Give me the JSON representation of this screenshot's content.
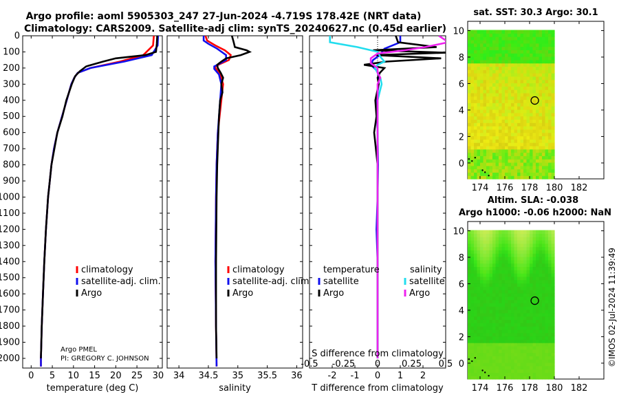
{
  "title": {
    "line1": "Argo profile: aoml 5905303_247 27-Jun-2024 -4.719S 178.42E (NRT data)",
    "line2": "Climatology: CARS2009. Satellite-adj clim: synTS_20240627.nc (0.45d earlier)"
  },
  "side_label": "©IMOS 02-Jul-2024 11:39:49",
  "colors": {
    "climatology": "#ff0000",
    "satellite": "#1010ee",
    "argo": "#000000",
    "sat_salinity": "#22ddee",
    "argo_salinity": "#ee22ee"
  },
  "credit": {
    "line1": "Argo PMEL",
    "line2": "PI: GREGORY C. JOHNSON"
  },
  "chart_data": [
    {
      "id": "temperature",
      "type": "line",
      "xlabel": "temperature (deg C)",
      "xlim": [
        -2,
        31
      ],
      "ylim": [
        2060,
        0
      ],
      "xticks": [
        "0",
        "5",
        "10",
        "15",
        "20",
        "25",
        "30"
      ],
      "xtick_values": [
        0,
        5,
        10,
        15,
        20,
        25,
        30
      ],
      "yticks": [
        "0",
        "100",
        "200",
        "300",
        "400",
        "500",
        "600",
        "700",
        "800",
        "900",
        "1000",
        "1100",
        "1200",
        "1300",
        "1400",
        "1500",
        "1600",
        "1700",
        "1800",
        "1900",
        "2000"
      ],
      "ytick_values": [
        0,
        100,
        200,
        300,
        400,
        500,
        600,
        700,
        800,
        900,
        1000,
        1100,
        1200,
        1300,
        1400,
        1500,
        1600,
        1700,
        1800,
        1900,
        2000
      ],
      "legend": [
        "climatology",
        "satellite-adj. clim.",
        "Argo"
      ],
      "series": [
        {
          "name": "climatology",
          "color": "#ff0000",
          "depth": [
            0,
            60,
            120,
            160,
            200,
            230,
            260,
            300,
            400,
            500,
            600,
            700,
            800,
            900,
            1000,
            1200,
            1400,
            1600,
            1800,
            2000,
            2050
          ],
          "values": [
            29.0,
            28.8,
            26.5,
            21,
            14,
            11,
            10.2,
            9.5,
            8.4,
            7.3,
            6.2,
            5.4,
            4.8,
            4.4,
            4.0,
            3.5,
            3.1,
            2.8,
            2.5,
            2.3,
            2.3
          ]
        },
        {
          "name": "satellite-adj. clim.",
          "color": "#1010ee",
          "depth": [
            0,
            60,
            120,
            160,
            200,
            230,
            260,
            300,
            400,
            500,
            600,
            700,
            800,
            900,
            1000,
            1200,
            1400,
            1600,
            1800,
            2000,
            2050
          ],
          "values": [
            30.0,
            29.9,
            28.5,
            22,
            14,
            11,
            10.2,
            9.5,
            8.4,
            7.3,
            6.2,
            5.4,
            4.8,
            4.4,
            4.0,
            3.5,
            3.1,
            2.8,
            2.5,
            2.3,
            2.3
          ]
        },
        {
          "name": "Argo",
          "color": "#000000",
          "depth": [
            0,
            50,
            100,
            120,
            140,
            160,
            190,
            220,
            250,
            300,
            400,
            500,
            600,
            700,
            800,
            900,
            1000,
            1200,
            1400,
            1600,
            1800,
            2000
          ],
          "values": [
            29.8,
            29.7,
            29.5,
            27,
            20,
            17,
            13,
            11.5,
            10.4,
            9.6,
            8.3,
            7.4,
            6.2,
            5.5,
            4.8,
            4.4,
            4.0,
            3.5,
            3.1,
            2.8,
            2.5,
            2.3
          ]
        }
      ]
    },
    {
      "id": "salinity",
      "type": "line",
      "xlabel": "salinity",
      "xlim": [
        33.8,
        36.1
      ],
      "ylim": [
        2060,
        0
      ],
      "xticks": [
        "34",
        "34.5",
        "35",
        "35.5",
        "36"
      ],
      "xtick_values": [
        34,
        34.5,
        35,
        35.5,
        36
      ],
      "legend": [
        "climatology",
        "satellite-adj. clim.",
        "Argo"
      ],
      "series": [
        {
          "name": "climatology",
          "color": "#ff0000",
          "depth": [
            0,
            30,
            60,
            90,
            120,
            150,
            175,
            190,
            200,
            240,
            300,
            400,
            600,
            800,
            1000,
            1400,
            1800,
            2050
          ],
          "values": [
            34.45,
            34.48,
            34.62,
            34.78,
            34.88,
            34.85,
            34.7,
            34.62,
            34.62,
            34.7,
            34.75,
            34.72,
            34.66,
            34.64,
            34.63,
            34.62,
            34.63,
            34.64
          ]
        },
        {
          "name": "satellite-adj. clim.",
          "color": "#1010ee",
          "depth": [
            0,
            30,
            50,
            80,
            120,
            150,
            175,
            190,
            205,
            240,
            300,
            400,
            600,
            800,
            1000,
            1400,
            1800,
            2050
          ],
          "values": [
            34.42,
            34.42,
            34.5,
            34.65,
            34.8,
            34.8,
            34.68,
            34.6,
            34.6,
            34.68,
            34.72,
            34.7,
            34.66,
            34.64,
            34.63,
            34.62,
            34.63,
            34.64
          ]
        },
        {
          "name": "Argo",
          "color": "#000000",
          "depth": [
            0,
            40,
            70,
            90,
            100,
            120,
            140,
            160,
            180,
            200,
            230,
            260,
            300,
            350,
            400,
            500,
            600,
            800,
            1000,
            1400,
            1800,
            2000
          ],
          "values": [
            34.9,
            34.93,
            34.95,
            35.15,
            35.2,
            35.05,
            34.8,
            34.72,
            34.65,
            34.66,
            34.71,
            34.75,
            34.72,
            34.74,
            34.7,
            34.68,
            34.67,
            34.65,
            34.64,
            34.63,
            34.63,
            34.64
          ]
        }
      ]
    },
    {
      "id": "difference",
      "type": "line",
      "xlabel": "T difference from climatology",
      "xlabel2": "S difference from climatology",
      "xlim": [
        -3,
        3
      ],
      "ylim": [
        2060,
        0
      ],
      "xticks": [
        "-2",
        "-1",
        "0",
        "1",
        "2"
      ],
      "xtick_values": [
        -2,
        -1,
        0,
        1,
        2
      ],
      "xticks2": [
        "-0.5",
        "-0.25",
        "0",
        "0.25",
        "0.5"
      ],
      "xtick2_values": [
        -0.5,
        -0.25,
        0,
        0.25,
        0.5
      ],
      "legend_left_title": "temperature",
      "legend_right_title": "salinity",
      "legend_left": [
        "satellite",
        "Argo"
      ],
      "legend_right": [
        "satellite",
        "Argo"
      ],
      "series": [
        {
          "name": "T satellite",
          "color": "#1010ee",
          "depth": [
            0,
            40,
            80,
            120,
            150,
            180,
            220,
            260,
            300,
            400,
            600,
            800,
            1000,
            1200,
            1400,
            2000
          ],
          "values": [
            1.0,
            1.0,
            0.3,
            0.1,
            -0.2,
            -0.3,
            0.0,
            0.05,
            0.05,
            -0.05,
            0.0,
            0.02,
            0.0,
            -0.05,
            0.0,
            0.0
          ]
        },
        {
          "name": "T Argo",
          "color": "#000000",
          "depth": [
            0,
            40,
            70,
            90,
            105,
            120,
            140,
            160,
            180,
            200,
            230,
            260,
            300,
            400,
            500,
            600,
            800,
            1000,
            1200,
            1400,
            1800,
            2000
          ],
          "values": [
            0.8,
            0.9,
            2.6,
            -0.2,
            3.0,
            -0.1,
            2.8,
            0.4,
            -0.6,
            0.3,
            0.1,
            0.0,
            0.05,
            -0.1,
            -0.05,
            -0.15,
            0.0,
            0.0,
            0.0,
            0.0,
            0.0,
            0.0
          ]
        },
        {
          "name": "S satellite",
          "color": "#22ddee",
          "depth": [
            0,
            40,
            70,
            100,
            130,
            160,
            180,
            200,
            230,
            260,
            300,
            400,
            600,
            1000,
            1400,
            2000
          ],
          "values": [
            -0.35,
            -0.35,
            -0.15,
            0.0,
            0.02,
            0.05,
            0.0,
            -0.02,
            0.0,
            0.02,
            0.03,
            0.0,
            0.0,
            0.0,
            0.0,
            0.0
          ]
        },
        {
          "name": "S Argo",
          "color": "#ee22ee",
          "depth": [
            0,
            40,
            70,
            90,
            110,
            140,
            170,
            200,
            230,
            260,
            300,
            400,
            600,
            1000,
            1400,
            2000
          ],
          "values": [
            0.45,
            0.52,
            0.35,
            0.2,
            0.0,
            -0.05,
            -0.05,
            0.0,
            0.0,
            0.02,
            0.0,
            0.0,
            0.0,
            0.0,
            0.0,
            0.0
          ]
        }
      ]
    },
    {
      "id": "sst_map",
      "type": "heatmap",
      "title": "sat. SST: 30.3 Argo: 30.1",
      "xlim": [
        173,
        184
      ],
      "ylim": [
        -1.2,
        10.7
      ],
      "xticks": [
        "174",
        "176",
        "178",
        "180",
        "182"
      ],
      "xtick_values": [
        174,
        176,
        178,
        180,
        182
      ],
      "yticks": [
        "0",
        "2",
        "4",
        "6",
        "8",
        "10"
      ],
      "ytick_values": [
        0,
        2,
        4,
        6,
        8,
        10
      ],
      "data_extent": {
        "lon": [
          173,
          180
        ],
        "lat": [
          -1.2,
          10
        ]
      },
      "float_position": {
        "lon": 178.42,
        "lat": 4.72
      }
    },
    {
      "id": "sla_map",
      "type": "heatmap",
      "title": "Altim. SLA: -0.038",
      "title2": "Argo h1000: -0.06 h2000: NaN",
      "xlim": [
        173,
        184
      ],
      "ylim": [
        -1.2,
        10.7
      ],
      "xticks": [
        "174",
        "176",
        "178",
        "180",
        "182"
      ],
      "xtick_values": [
        174,
        176,
        178,
        180,
        182
      ],
      "yticks": [
        "0",
        "2",
        "4",
        "6",
        "8",
        "10"
      ],
      "ytick_values": [
        0,
        2,
        4,
        6,
        8,
        10
      ],
      "data_extent": {
        "lon": [
          173,
          180
        ],
        "lat": [
          -1.2,
          10
        ]
      },
      "float_position": {
        "lon": 178.42,
        "lat": 4.72
      }
    }
  ]
}
